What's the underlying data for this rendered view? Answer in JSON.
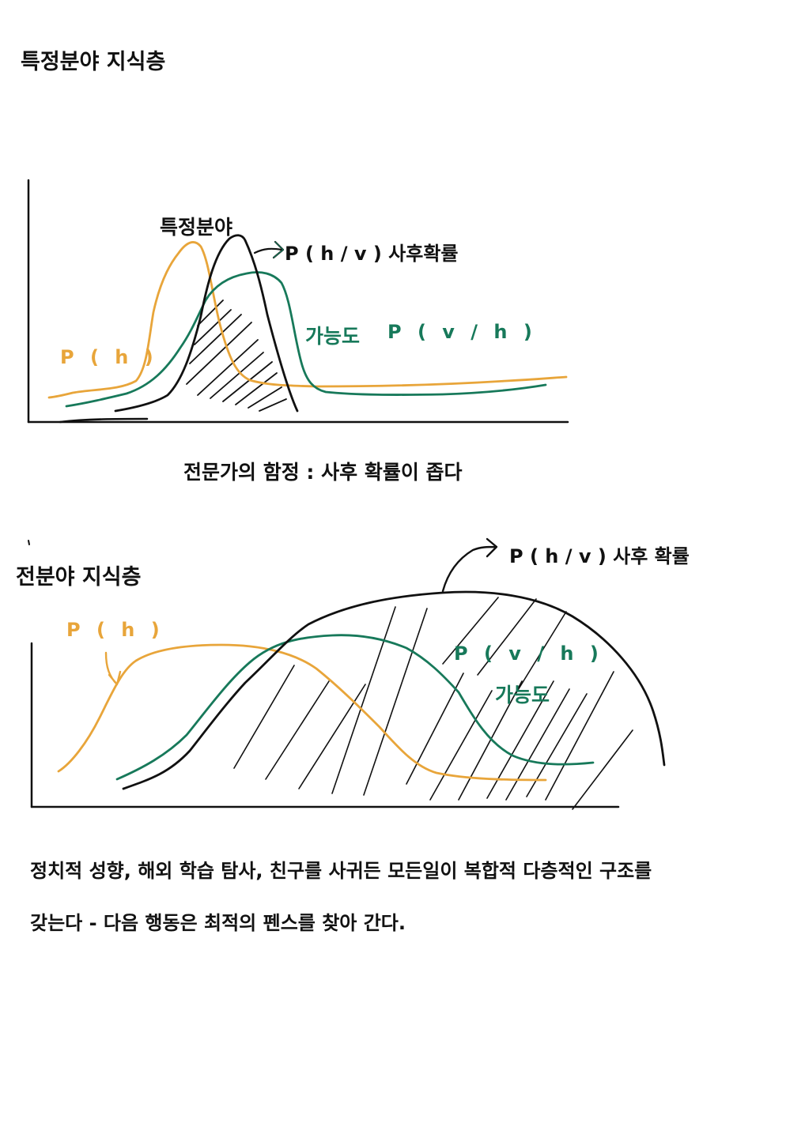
{
  "colors": {
    "ink": "#111111",
    "prior": "#e8a53a",
    "likelihood": "#17795a"
  },
  "section1": {
    "title": "특정분야 지식층",
    "label_field": "특정분야",
    "label_posterior": "P ( h / v )  사후확률",
    "label_likelihood_word": "가능도",
    "label_likelihood_formula": "P ( v / h )",
    "label_prior": "P ( h )",
    "caption": "전문가의 함정 : 사후 확률이 좁다"
  },
  "section2": {
    "title": "전분야 지식층",
    "label_posterior": "P ( h / v )  사후 확률",
    "label_prior": "P ( h )",
    "label_likelihood_formula": "P ( v / h )",
    "label_likelihood_word": "가능도"
  },
  "conclusion": {
    "line1": "정치적 성향, 해외 학습 탐사, 친구를 사귀든 모든일이 복합적 다층적인 구조를",
    "line2": "갖는다 - 다음 행동은 최적의 펜스를 찾아 간다."
  }
}
